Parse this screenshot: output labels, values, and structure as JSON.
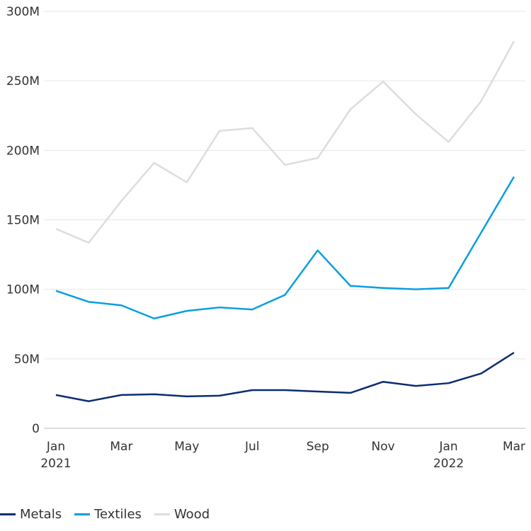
{
  "chart_data": {
    "type": "line",
    "x": [
      "Jan 2021",
      "Feb 2021",
      "Mar 2021",
      "Apr 2021",
      "May 2021",
      "Jun 2021",
      "Jul 2021",
      "Aug 2021",
      "Sep 2021",
      "Oct 2021",
      "Nov 2021",
      "Dec 2021",
      "Jan 2022",
      "Feb 2022",
      "Mar 2022"
    ],
    "x_tick_labels": [
      {
        "index": 0,
        "line1": "Jan",
        "line2": "2021"
      },
      {
        "index": 2,
        "line1": "Mar",
        "line2": ""
      },
      {
        "index": 4,
        "line1": "May",
        "line2": ""
      },
      {
        "index": 6,
        "line1": "Jul",
        "line2": ""
      },
      {
        "index": 8,
        "line1": "Sep",
        "line2": ""
      },
      {
        "index": 10,
        "line1": "Nov",
        "line2": ""
      },
      {
        "index": 12,
        "line1": "Jan",
        "line2": "2022"
      },
      {
        "index": 14,
        "line1": "Mar",
        "line2": ""
      }
    ],
    "y_ticks": [
      {
        "value": 0,
        "label": "0"
      },
      {
        "value": 50,
        "label": "50M"
      },
      {
        "value": 100,
        "label": "100M"
      },
      {
        "value": 150,
        "label": "150M"
      },
      {
        "value": 200,
        "label": "200M"
      },
      {
        "value": 250,
        "label": "250M"
      },
      {
        "value": 300,
        "label": "300M"
      }
    ],
    "ylim": [
      0,
      300
    ],
    "y_unit": "millions",
    "grid": "horizontal",
    "legend_position": "bottom-left",
    "series": [
      {
        "name": "Metals",
        "color": "#0b2d72",
        "values": [
          24,
          19.5,
          24,
          24.5,
          23,
          23.5,
          27.5,
          27.5,
          26.5,
          25.5,
          33.5,
          30.5,
          32.5,
          39.5,
          54.5
        ]
      },
      {
        "name": "Textiles",
        "color": "#0a9ee0",
        "values": [
          99,
          91,
          88.5,
          79,
          84.5,
          87,
          85.5,
          96,
          128,
          102.5,
          101,
          100,
          101,
          141,
          181
        ]
      },
      {
        "name": "Wood",
        "color": "#dddddd",
        "values": [
          143.5,
          133.5,
          163.5,
          191,
          177,
          214,
          216,
          189.5,
          194.5,
          229.5,
          249.5,
          226,
          206,
          235.5,
          278.5
        ]
      }
    ]
  }
}
